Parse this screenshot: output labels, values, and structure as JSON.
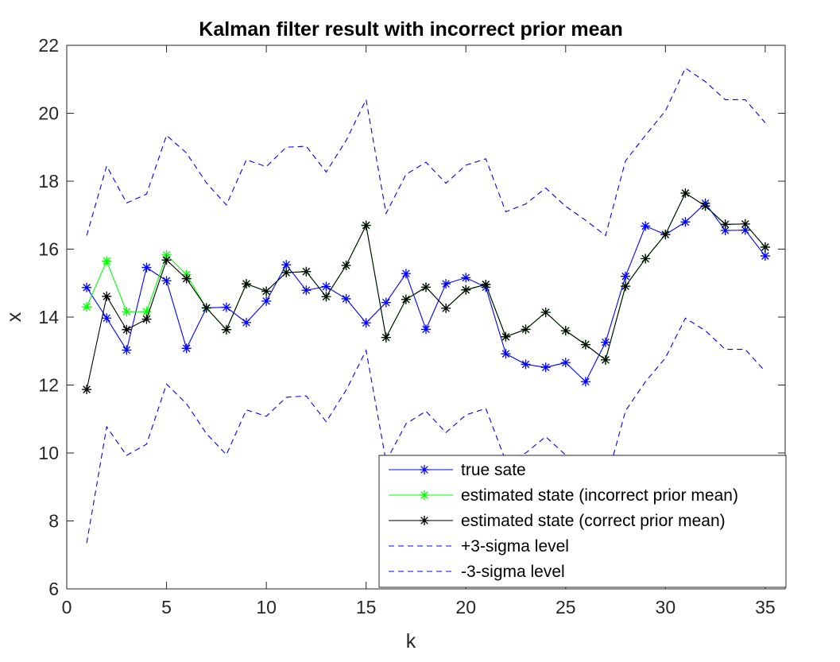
{
  "chart_data": {
    "type": "line",
    "title": "Kalman filter result with incorrect prior mean",
    "xlabel": "k",
    "ylabel": "x",
    "xlim": [
      0,
      36
    ],
    "ylim": [
      6,
      22
    ],
    "xticks": [
      0,
      5,
      10,
      15,
      20,
      25,
      30,
      35
    ],
    "yticks": [
      6,
      8,
      10,
      12,
      14,
      16,
      18,
      20,
      22
    ],
    "grid": false,
    "legend_position": "bottom-right",
    "series": [
      {
        "name": "true sate",
        "color": "#0000ff",
        "line": "solid",
        "marker": "asterisk",
        "x": [
          1,
          2,
          3,
          4,
          5,
          6,
          7,
          8,
          9,
          10,
          11,
          12,
          13,
          14,
          15,
          16,
          17,
          18,
          19,
          20,
          21,
          22,
          23,
          24,
          25,
          26,
          27,
          28,
          29,
          30,
          31,
          32,
          33,
          34,
          35
        ],
        "y": [
          14.87,
          13.97,
          13.03,
          15.46,
          15.07,
          13.08,
          14.27,
          14.29,
          13.84,
          14.47,
          15.54,
          14.79,
          14.9,
          14.54,
          13.83,
          14.43,
          15.28,
          13.64,
          14.98,
          15.16,
          14.88,
          12.92,
          12.61,
          12.52,
          12.66,
          12.1,
          13.26,
          15.2,
          16.68,
          16.43,
          16.8,
          17.35,
          16.55,
          16.56,
          15.8
        ]
      },
      {
        "name": "estimated state (incorrect prior mean)",
        "color": "#00ff00",
        "line": "solid",
        "marker": "asterisk",
        "x": [
          1,
          2,
          3,
          4,
          5,
          6,
          7,
          8,
          9,
          10,
          11,
          12,
          13,
          14,
          15,
          16,
          17,
          18,
          19,
          20,
          21,
          22,
          23,
          24,
          25,
          26,
          27,
          28,
          29,
          30,
          31,
          32,
          33,
          34,
          35
        ],
        "y": [
          14.3,
          15.65,
          14.16,
          14.16,
          15.83,
          15.25,
          14.26,
          13.63,
          14.98,
          14.76,
          15.31,
          15.34,
          14.6,
          15.52,
          16.7,
          13.4,
          14.52,
          14.88,
          14.26,
          14.8,
          14.96,
          13.42,
          13.64,
          14.14,
          13.6,
          13.19,
          12.74,
          14.91,
          15.72,
          16.43,
          17.65,
          17.27,
          16.73,
          16.74,
          16.06
        ]
      },
      {
        "name": "estimated state (correct prior mean)",
        "color": "#000000",
        "line": "solid",
        "marker": "asterisk",
        "x": [
          1,
          2,
          3,
          4,
          5,
          6,
          7,
          8,
          9,
          10,
          11,
          12,
          13,
          14,
          15,
          16,
          17,
          18,
          19,
          20,
          21,
          22,
          23,
          24,
          25,
          26,
          27,
          28,
          29,
          30,
          31,
          32,
          33,
          34,
          35
        ],
        "y": [
          11.87,
          14.61,
          13.63,
          13.94,
          15.68,
          15.13,
          14.27,
          13.63,
          14.98,
          14.76,
          15.31,
          15.34,
          14.6,
          15.52,
          16.7,
          13.4,
          14.52,
          14.88,
          14.26,
          14.8,
          14.96,
          13.42,
          13.64,
          14.14,
          13.6,
          13.19,
          12.74,
          14.91,
          15.72,
          16.43,
          17.65,
          17.27,
          16.73,
          16.74,
          16.06
        ]
      },
      {
        "name": "+3-sigma level",
        "color": "#0000ff",
        "line": "dashed",
        "marker": "none",
        "x": [
          1,
          2,
          3,
          4,
          5,
          6,
          7,
          8,
          9,
          10,
          11,
          12,
          13,
          14,
          15,
          16,
          17,
          18,
          19,
          20,
          21,
          22,
          23,
          24,
          25,
          26,
          27,
          28,
          29,
          30,
          31,
          32,
          33,
          34,
          35
        ],
        "y": [
          16.4,
          18.45,
          17.36,
          17.62,
          19.35,
          18.83,
          17.95,
          17.3,
          18.63,
          18.43,
          19.0,
          19.03,
          18.27,
          19.2,
          20.4,
          17.05,
          18.2,
          18.56,
          17.94,
          18.47,
          18.66,
          17.1,
          17.33,
          17.8,
          17.26,
          16.85,
          16.4,
          18.6,
          19.35,
          20.07,
          21.33,
          20.93,
          20.4,
          20.4,
          19.72
        ]
      },
      {
        "name": "-3-sigma level",
        "color": "#0000ff",
        "line": "dashed",
        "marker": "none",
        "x": [
          1,
          2,
          3,
          4,
          5,
          6,
          7,
          8,
          9,
          10,
          11,
          12,
          13,
          14,
          15,
          16,
          17,
          18,
          19,
          20,
          21,
          22,
          23,
          24,
          25,
          26,
          27,
          28,
          29,
          30,
          31,
          32,
          33,
          34,
          35
        ],
        "y": [
          7.35,
          10.77,
          9.93,
          10.26,
          12.03,
          11.45,
          10.57,
          9.95,
          11.27,
          11.08,
          11.64,
          11.68,
          10.92,
          11.85,
          13.02,
          9.75,
          10.86,
          11.23,
          10.6,
          11.12,
          11.31,
          9.76,
          10.0,
          10.48,
          9.94,
          9.53,
          9.09,
          11.24,
          12.1,
          12.8,
          13.97,
          13.6,
          13.05,
          13.05,
          12.4
        ]
      }
    ]
  }
}
